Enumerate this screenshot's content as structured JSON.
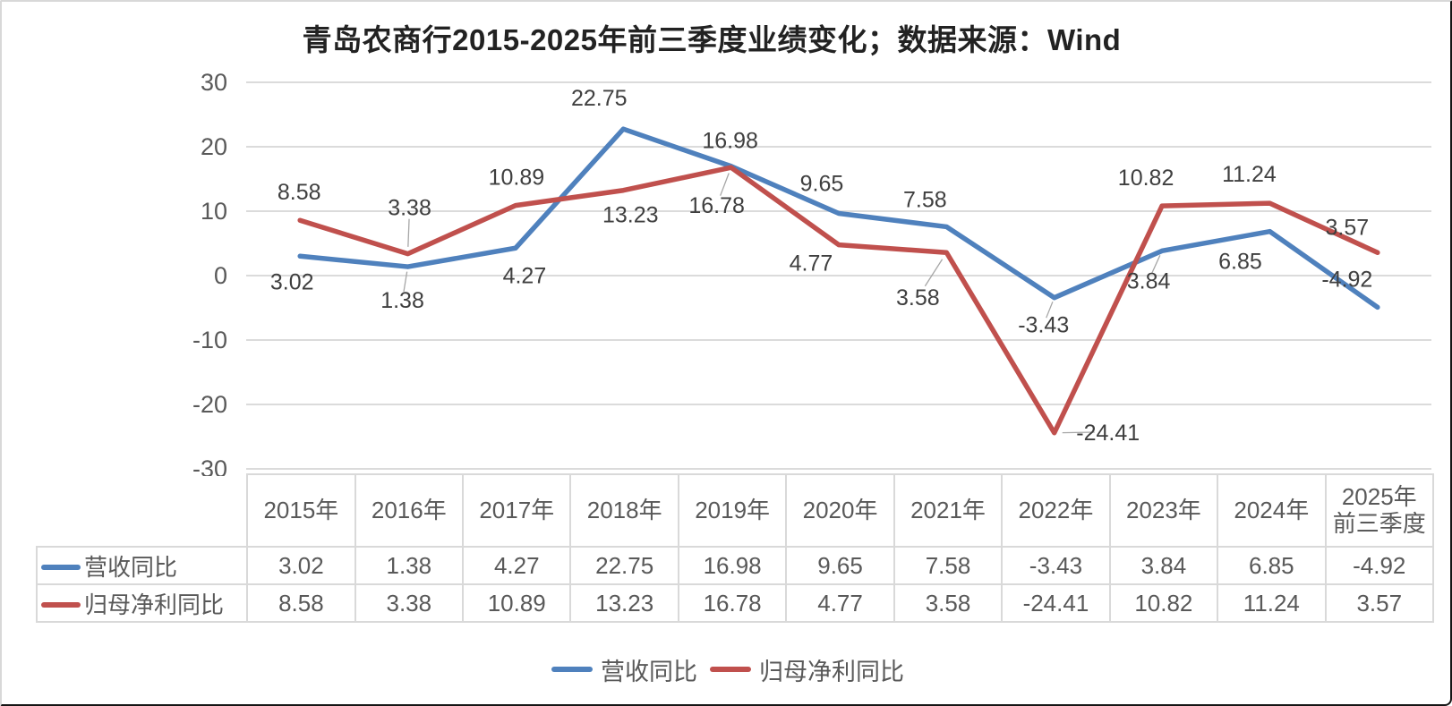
{
  "title": "青岛农商行2015-2025年前三季度业绩变化；数据来源：Wind",
  "colors": {
    "revenue_series": "#4F81BD",
    "profit_series": "#C0504D",
    "gridline": "#DBDBDB",
    "axis_text": "#595959",
    "data_label_text": "#3F3F3F",
    "table_border": "#D9D9D9",
    "table_text": "#595959",
    "leader_line": "#A6A6A6"
  },
  "chart_data": {
    "type": "line",
    "title": "青岛农商行2015-2025年前三季度业绩变化；数据来源：Wind",
    "categories": [
      "2015年",
      "2016年",
      "2017年",
      "2018年",
      "2019年",
      "2020年",
      "2021年",
      "2022年",
      "2023年",
      "2024年",
      "2025年\n前三季度"
    ],
    "series": [
      {
        "name": "营收同比",
        "color": "#4F81BD",
        "values": [
          3.02,
          1.38,
          4.27,
          22.75,
          16.98,
          9.65,
          7.58,
          -3.43,
          3.84,
          6.85,
          -4.92
        ]
      },
      {
        "name": "归母净利同比",
        "color": "#C0504D",
        "values": [
          8.58,
          3.38,
          10.89,
          13.23,
          16.78,
          4.77,
          3.58,
          -24.41,
          10.82,
          11.24,
          3.57
        ]
      }
    ],
    "yticks": [
      30,
      20,
      10,
      0,
      -10,
      -20,
      -30
    ],
    "ylim": [
      -30,
      30
    ],
    "grid": true,
    "data_labels": true,
    "legend_position": "bottom",
    "xaxis_rendered_as": "table"
  }
}
